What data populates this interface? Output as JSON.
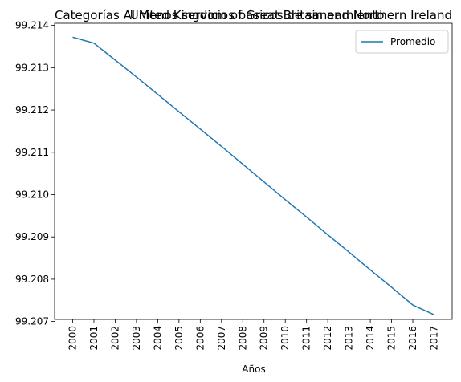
{
  "chart_data": {
    "type": "line",
    "title_left": "Categorías Al Menos servicios básicos de saneamiento",
    "title_right": "United Kingdom of Great Britain and Northern Ireland",
    "xlabel": "Años",
    "ylabel": "",
    "x": [
      2000,
      2001,
      2002,
      2003,
      2004,
      2005,
      2006,
      2007,
      2008,
      2009,
      2010,
      2011,
      2012,
      2013,
      2014,
      2015,
      2016,
      2017
    ],
    "xtick_labels": [
      "2000",
      "2001",
      "2002",
      "2003",
      "2004",
      "2005",
      "2006",
      "2007",
      "2008",
      "2009",
      "2010",
      "2011",
      "2012",
      "2013",
      "2014",
      "2015",
      "2016",
      "2017"
    ],
    "series": [
      {
        "name": "Promedio",
        "color": "#1f77b4",
        "values": [
          99.21372,
          99.21358,
          99.21318,
          99.21278,
          99.21237,
          99.21196,
          99.21155,
          99.21114,
          99.21072,
          99.2103,
          99.20988,
          99.20947,
          99.20905,
          99.20864,
          99.20822,
          99.20781,
          99.20739,
          99.20716
        ]
      }
    ],
    "ylim": [
      99.20705,
      99.21405
    ],
    "yticks": [
      99.207,
      99.208,
      99.209,
      99.21,
      99.211,
      99.212,
      99.213,
      99.214
    ],
    "ytick_labels": [
      "99.207",
      "99.208",
      "99.209",
      "99.210",
      "99.211",
      "99.212",
      "99.213",
      "99.214"
    ],
    "grid": false,
    "legend_position": "top-right"
  }
}
